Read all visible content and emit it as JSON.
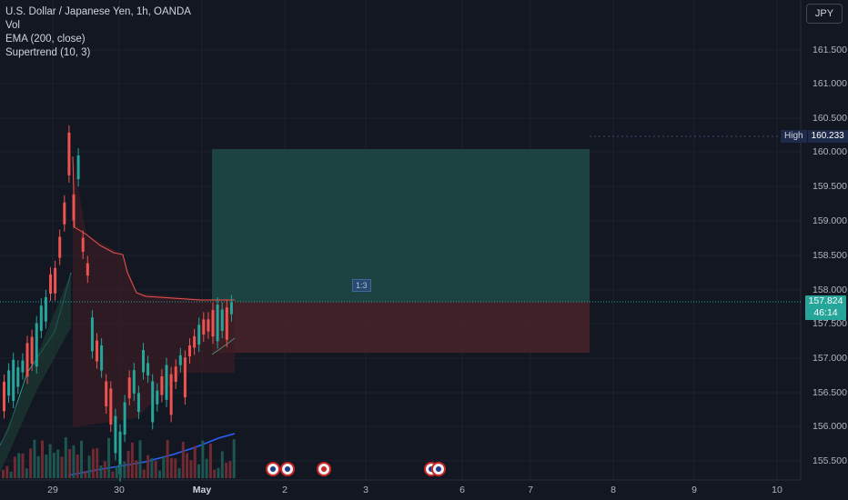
{
  "legend": {
    "symbol": "U.S. Dollar / Japanese Yen, 1h, OANDA",
    "vol": "Vol",
    "ema": "EMA (200, close)",
    "supertrend": "Supertrend (10, 3)"
  },
  "currency_button": "JPY",
  "price_axis": {
    "labels": [
      "161.500",
      "161.000",
      "160.500",
      "160.000",
      "159.500",
      "159.000",
      "158.500",
      "158.000",
      "157.500",
      "157.000",
      "156.500",
      "156.000",
      "155.500"
    ],
    "high_label": "High",
    "high_value": "160.233",
    "current_price": "157.824",
    "countdown": "46:14"
  },
  "time_axis": {
    "labels": [
      "29",
      "30",
      "May",
      "2",
      "3",
      "6",
      "7",
      "8",
      "9",
      "10"
    ]
  },
  "position_tool": {
    "ratio": "1:3"
  },
  "colors": {
    "background": "#131722",
    "up": "#26a69a",
    "down": "#ef5350",
    "ema": "#2962ff",
    "profit_zone": "#1e4a47",
    "loss_zone": "#4a2329",
    "grid": "#1e222d"
  },
  "events": [
    {
      "type": "flag-us",
      "count": 2
    },
    {
      "type": "flag-jp",
      "count": 1
    },
    {
      "type": "flag-us",
      "count": 2
    }
  ]
}
